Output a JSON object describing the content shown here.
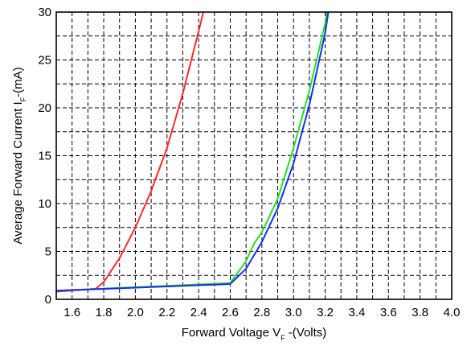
{
  "chart_data": {
    "type": "line",
    "title": "",
    "xlabel": {
      "main": "Forward Voltage V",
      "subscript": "F",
      "suffix": " -(Volts)"
    },
    "ylabel": {
      "main": "Average Forward Current I",
      "subscript": "F",
      "suffix": "-(mA)"
    },
    "xlim": [
      1.5,
      4.0
    ],
    "ylim": [
      0,
      30
    ],
    "x_ticks": [
      1.6,
      1.8,
      2.0,
      2.2,
      2.4,
      2.6,
      2.8,
      3.0,
      3.2,
      3.4,
      3.6,
      3.8,
      4.0
    ],
    "x_tick_labels": [
      "1.6",
      "1.8",
      "2.0",
      "2.2",
      "2.4",
      "2.6",
      "2.8",
      "3.0",
      "3.2",
      "3.4",
      "3.6",
      "3.8",
      "4.0"
    ],
    "y_ticks": [
      0,
      5,
      10,
      15,
      20,
      25,
      30
    ],
    "y_tick_labels": [
      "0",
      "5",
      "10",
      "15",
      "20",
      "25",
      "30"
    ],
    "grid": true,
    "grid_style": "dashed",
    "x_minor_step": 0.1,
    "y_minor_step": 2.5,
    "series": [
      {
        "color": "#ff2a2a",
        "points": [
          [
            1.5,
            0.8
          ],
          [
            1.75,
            1.1
          ],
          [
            1.8,
            1.8
          ],
          [
            1.9,
            4.3
          ],
          [
            2.0,
            7.5
          ],
          [
            2.1,
            11.3
          ],
          [
            2.2,
            15.8
          ],
          [
            2.3,
            21.5
          ],
          [
            2.4,
            28.0
          ],
          [
            2.43,
            30.0
          ]
        ]
      },
      {
        "color": "#22e022",
        "points": [
          [
            1.5,
            0.9
          ],
          [
            2.6,
            1.7
          ],
          [
            2.7,
            4.0
          ],
          [
            2.75,
            5.8
          ],
          [
            2.8,
            7.0
          ],
          [
            2.9,
            10.5
          ],
          [
            3.0,
            15.8
          ],
          [
            3.1,
            21.8
          ],
          [
            3.2,
            28.8
          ],
          [
            3.21,
            30.0
          ]
        ]
      },
      {
        "color": "#1a2cf0",
        "points": [
          [
            1.5,
            0.9
          ],
          [
            2.6,
            1.6
          ],
          [
            2.7,
            3.2
          ],
          [
            2.8,
            6.0
          ],
          [
            2.9,
            9.5
          ],
          [
            3.0,
            14.2
          ],
          [
            3.1,
            20.3
          ],
          [
            3.2,
            27.8
          ],
          [
            3.22,
            30.0
          ]
        ]
      }
    ]
  }
}
